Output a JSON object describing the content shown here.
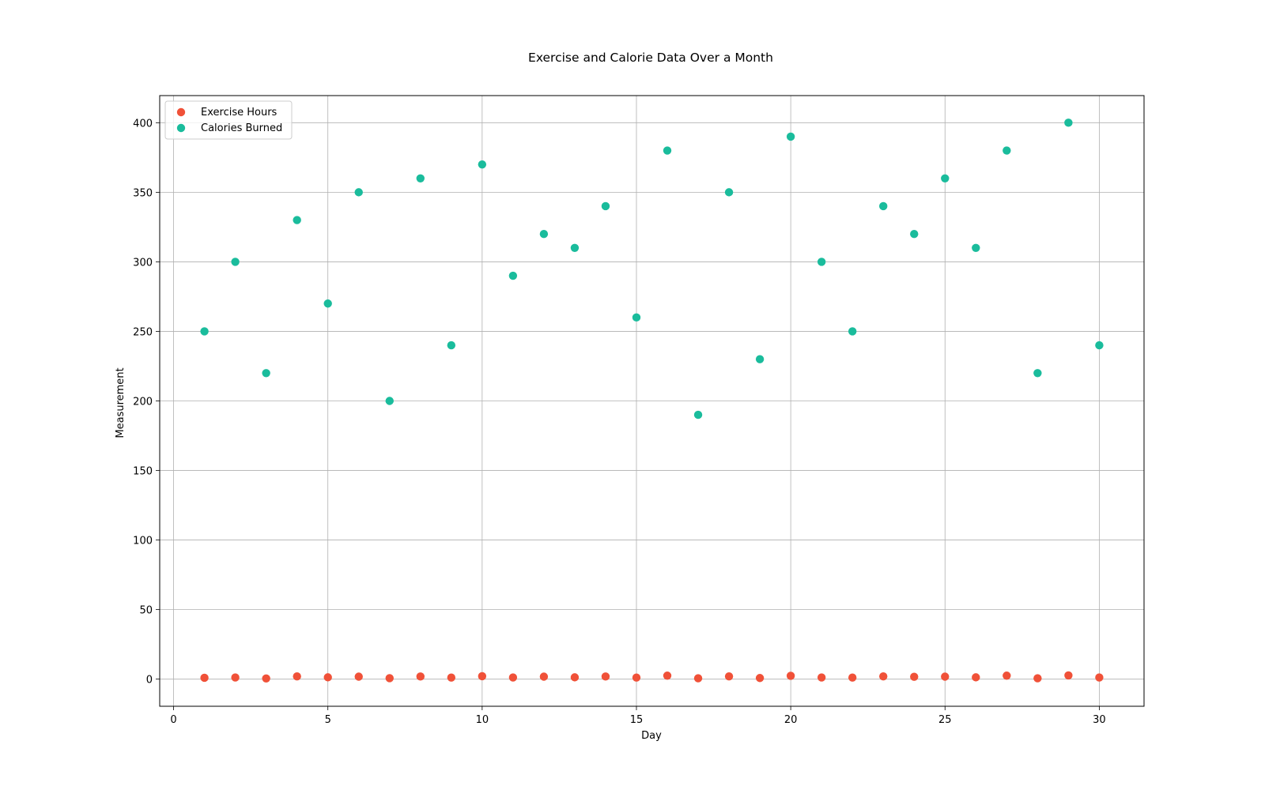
{
  "chart_data": {
    "type": "scatter",
    "title": "Exercise and Calorie Data Over a Month",
    "xlabel": "Day",
    "ylabel": "Measurement",
    "xlim": [
      -0.45,
      31.45
    ],
    "ylim": [
      -19.5,
      419.5
    ],
    "xticks": [
      0,
      5,
      10,
      15,
      20,
      25,
      30
    ],
    "yticks": [
      0,
      50,
      100,
      150,
      200,
      250,
      300,
      350,
      400
    ],
    "grid": true,
    "legend_position": "upper-left",
    "x": [
      1,
      2,
      3,
      4,
      5,
      6,
      7,
      8,
      9,
      10,
      11,
      12,
      13,
      14,
      15,
      16,
      17,
      18,
      19,
      20,
      21,
      22,
      23,
      24,
      25,
      26,
      27,
      28,
      29,
      30
    ],
    "series": [
      {
        "name": "Exercise Hours",
        "color": "#f05138",
        "values": [
          1.0,
          1.2,
          0.5,
          2.0,
          1.3,
          1.8,
          0.7,
          1.9,
          1.1,
          2.1,
          1.2,
          1.8,
          1.3,
          1.9,
          1.1,
          2.5,
          0.6,
          2.0,
          0.8,
          2.4,
          1.2,
          1.1,
          2.0,
          1.7,
          1.8,
          1.3,
          2.5,
          0.6,
          2.7,
          1.2
        ]
      },
      {
        "name": "Calories Burned",
        "color": "#1abc9c",
        "values": [
          250,
          300,
          220,
          330,
          270,
          350,
          200,
          360,
          240,
          370,
          290,
          320,
          310,
          340,
          260,
          380,
          190,
          350,
          230,
          390,
          300,
          250,
          340,
          320,
          360,
          310,
          380,
          220,
          400,
          240
        ]
      }
    ]
  }
}
